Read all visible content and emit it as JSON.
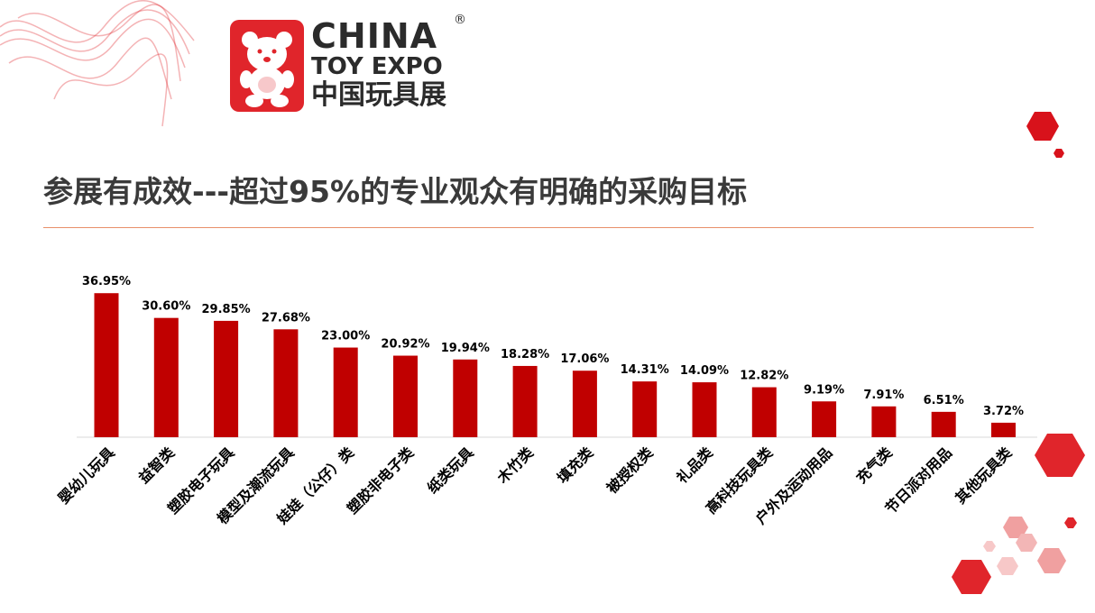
{
  "logo": {
    "line1": "CHINA",
    "reg": "®",
    "line2": "TOY EXPO",
    "line3": "中国玩具展"
  },
  "title": "参展有成效---超过95%的专业观众有明确的采购目标",
  "colors": {
    "bar": "#c00000",
    "accent": "#e0252b",
    "text": "#000000"
  },
  "chart_data": {
    "type": "bar",
    "categories": [
      "婴幼儿玩具",
      "益智类",
      "塑胶电子玩具",
      "模型及潮流玩具",
      "娃娃（公仔）类",
      "塑胶非电子类",
      "纸类玩具",
      "木竹类",
      "填充类",
      "被授权类",
      "礼品类",
      "高科技玩具类",
      "户外及运动用品",
      "充气类",
      "节日派对用品",
      "其他玩具类"
    ],
    "values": [
      36.95,
      30.6,
      29.85,
      27.68,
      23.0,
      20.92,
      19.94,
      18.28,
      17.06,
      14.31,
      14.09,
      12.82,
      9.19,
      7.91,
      6.51,
      3.72
    ],
    "value_labels": [
      "36.95%",
      "30.60%",
      "29.85%",
      "27.68%",
      "23.00%",
      "20.92%",
      "19.94%",
      "18.28%",
      "17.06%",
      "14.31%",
      "14.09%",
      "12.82%",
      "9.19%",
      "7.91%",
      "6.51%",
      "3.72%"
    ],
    "ylim": [
      0,
      37
    ],
    "grid": false,
    "legend": "none"
  }
}
